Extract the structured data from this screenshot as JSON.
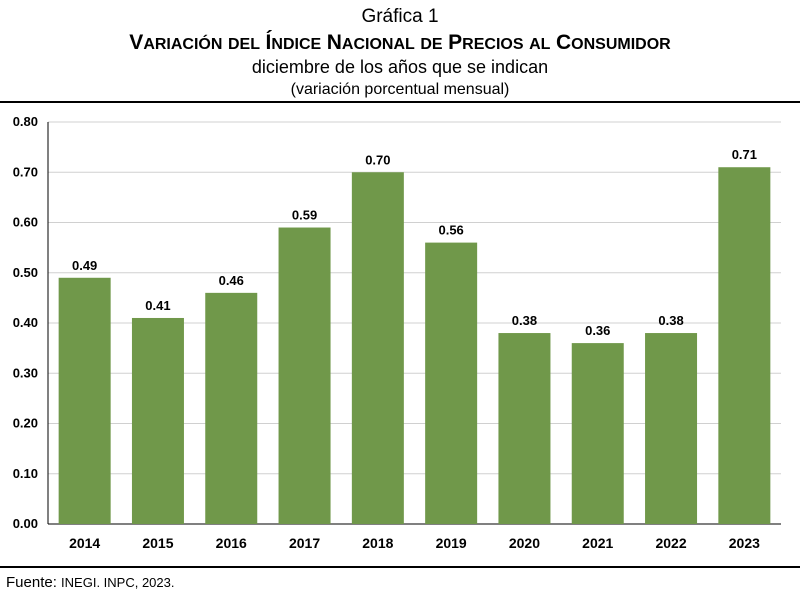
{
  "header": {
    "label": "Gráfica 1",
    "title": "Variación del Índice Nacional de Precios al Consumidor",
    "subtitle": "diciembre de los años que se indican",
    "unit_note": "(variación porcentual mensual)"
  },
  "footer": {
    "source_key": "Fuente:",
    "source_value": "INEGI. INPC, 2023."
  },
  "chart_data": {
    "type": "bar",
    "title": "Variación del Índice Nacional de Precios al Consumidor",
    "subtitle": "diciembre de los años que se indican",
    "xlabel": "",
    "ylabel": "",
    "categories": [
      "2014",
      "2015",
      "2016",
      "2017",
      "2018",
      "2019",
      "2020",
      "2021",
      "2022",
      "2023"
    ],
    "values": [
      0.49,
      0.41,
      0.46,
      0.59,
      0.7,
      0.56,
      0.38,
      0.36,
      0.38,
      0.71
    ],
    "data_labels": [
      "0.49",
      "0.41",
      "0.46",
      "0.59",
      "0.70",
      "0.56",
      "0.38",
      "0.36",
      "0.38",
      "0.71"
    ],
    "y_ticks": [
      "0.00",
      "0.10",
      "0.20",
      "0.30",
      "0.40",
      "0.50",
      "0.60",
      "0.70",
      "0.80"
    ],
    "ylim": [
      0,
      0.8
    ],
    "grid": true,
    "legend": "none",
    "bar_color": "#70984a",
    "grid_color": "#d0d0d0"
  }
}
